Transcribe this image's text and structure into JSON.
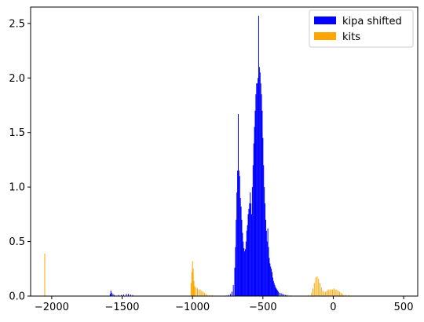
{
  "chart_data": {
    "type": "bar",
    "title": "",
    "xlabel": "",
    "ylabel": "",
    "xlim": [
      -2150,
      600
    ],
    "ylim": [
      0,
      2.65
    ],
    "grid": false,
    "legend_placement": "top-right",
    "xticks": [
      -2000,
      -1500,
      -1000,
      -500,
      0,
      500
    ],
    "yticks": [
      0.0,
      0.5,
      1.0,
      1.5,
      2.0,
      2.5
    ],
    "xtick_labels": [
      "−2000",
      "−1500",
      "−1000",
      "−500",
      "0",
      "500"
    ],
    "ytick_labels": [
      "0.0",
      "0.5",
      "1.0",
      "1.5",
      "2.0",
      "2.5"
    ],
    "series": [
      {
        "name": "kits",
        "color": "#ffa500",
        "points": [
          [
            -2050,
            0.39
          ],
          [
            -1010,
            0.12
          ],
          [
            -1005,
            0.22
          ],
          [
            -1000,
            0.32
          ],
          [
            -995,
            0.25
          ],
          [
            -990,
            0.14
          ],
          [
            -985,
            0.09
          ],
          [
            -975,
            0.08
          ],
          [
            -965,
            0.07
          ],
          [
            -955,
            0.06
          ],
          [
            -945,
            0.06
          ],
          [
            -935,
            0.05
          ],
          [
            -925,
            0.04
          ],
          [
            -915,
            0.03
          ],
          [
            -905,
            0.02
          ],
          [
            -895,
            0.01
          ],
          [
            -880,
            0.01
          ],
          [
            -860,
            0.01
          ],
          [
            -175,
            0.01
          ],
          [
            -155,
            0.03
          ],
          [
            -145,
            0.07
          ],
          [
            -135,
            0.12
          ],
          [
            -125,
            0.17
          ],
          [
            -115,
            0.18
          ],
          [
            -105,
            0.16
          ],
          [
            -95,
            0.12
          ],
          [
            -85,
            0.08
          ],
          [
            -75,
            0.05
          ],
          [
            -65,
            0.04
          ],
          [
            -55,
            0.04
          ],
          [
            -45,
            0.05
          ],
          [
            -35,
            0.06
          ],
          [
            -25,
            0.06
          ],
          [
            -15,
            0.06
          ],
          [
            -5,
            0.06
          ],
          [
            5,
            0.07
          ],
          [
            15,
            0.06
          ],
          [
            25,
            0.06
          ],
          [
            35,
            0.05
          ],
          [
            45,
            0.04
          ],
          [
            55,
            0.03
          ],
          [
            65,
            0.02
          ],
          [
            75,
            0.01
          ],
          [
            90,
            0.01
          ],
          [
            110,
            0.01
          ],
          [
            130,
            0.005
          ]
        ]
      },
      {
        "name": "kipa shifted",
        "color": "#0000ff",
        "points": [
          [
            -1585,
            0.02
          ],
          [
            -1580,
            0.05
          ],
          [
            -1575,
            0.03
          ],
          [
            -1565,
            0.02
          ],
          [
            -1555,
            0.01
          ],
          [
            -1525,
            0.01
          ],
          [
            -1505,
            0.01
          ],
          [
            -1490,
            0.015
          ],
          [
            -1470,
            0.02
          ],
          [
            -1455,
            0.02
          ],
          [
            -1440,
            0.015
          ],
          [
            -1425,
            0.01
          ],
          [
            -760,
            0.005
          ],
          [
            -745,
            0.01
          ],
          [
            -730,
            0.02
          ],
          [
            -720,
            0.04
          ],
          [
            -710,
            0.1
          ],
          [
            -700,
            0.26
          ],
          [
            -695,
            0.45
          ],
          [
            -690,
            0.7
          ],
          [
            -685,
            0.95
          ],
          [
            -680,
            1.15
          ],
          [
            -675,
            1.67
          ],
          [
            -670,
            1.15
          ],
          [
            -665,
            1.1
          ],
          [
            -660,
            0.9
          ],
          [
            -655,
            0.82
          ],
          [
            -650,
            0.7
          ],
          [
            -645,
            0.58
          ],
          [
            -640,
            0.5
          ],
          [
            -635,
            0.44
          ],
          [
            -630,
            0.41
          ],
          [
            -625,
            0.43
          ],
          [
            -620,
            0.5
          ],
          [
            -615,
            0.6
          ],
          [
            -610,
            0.65
          ],
          [
            -605,
            0.75
          ],
          [
            -600,
            0.8
          ],
          [
            -595,
            0.85
          ],
          [
            -590,
            0.95
          ],
          [
            -585,
            0.85
          ],
          [
            -580,
            0.75
          ],
          [
            -575,
            1.0
          ],
          [
            -570,
            1.2
          ],
          [
            -565,
            1.4
          ],
          [
            -560,
            1.55
          ],
          [
            -555,
            1.7
          ],
          [
            -550,
            1.85
          ],
          [
            -545,
            1.95
          ],
          [
            -540,
            1.95
          ],
          [
            -535,
            2.0
          ],
          [
            -530,
            2.57
          ],
          [
            -525,
            2.1
          ],
          [
            -520,
            2.05
          ],
          [
            -515,
            1.95
          ],
          [
            -510,
            1.85
          ],
          [
            -505,
            1.7
          ],
          [
            -500,
            1.45
          ],
          [
            -495,
            1.2
          ],
          [
            -490,
            1.0
          ],
          [
            -485,
            0.85
          ],
          [
            -480,
            0.7
          ],
          [
            -475,
            0.6
          ],
          [
            -470,
            0.5
          ],
          [
            -465,
            0.62
          ],
          [
            -460,
            0.45
          ],
          [
            -455,
            0.35
          ],
          [
            -450,
            0.3
          ],
          [
            -445,
            0.27
          ],
          [
            -440,
            0.25
          ],
          [
            -435,
            0.22
          ],
          [
            -430,
            0.17
          ],
          [
            -425,
            0.14
          ],
          [
            -420,
            0.12
          ],
          [
            -415,
            0.1
          ],
          [
            -410,
            0.08
          ],
          [
            -405,
            0.07
          ],
          [
            -400,
            0.06
          ],
          [
            -395,
            0.05
          ],
          [
            -390,
            0.04
          ],
          [
            -380,
            0.03
          ],
          [
            -370,
            0.025
          ],
          [
            -360,
            0.02
          ],
          [
            -350,
            0.015
          ],
          [
            -340,
            0.01
          ],
          [
            -330,
            0.01
          ],
          [
            -315,
            0.005
          ],
          [
            -300,
            0.005
          ]
        ]
      }
    ],
    "legend": [
      {
        "label": "kipa shifted",
        "color": "#0000ff"
      },
      {
        "label": "kits",
        "color": "#ffa500"
      }
    ]
  }
}
